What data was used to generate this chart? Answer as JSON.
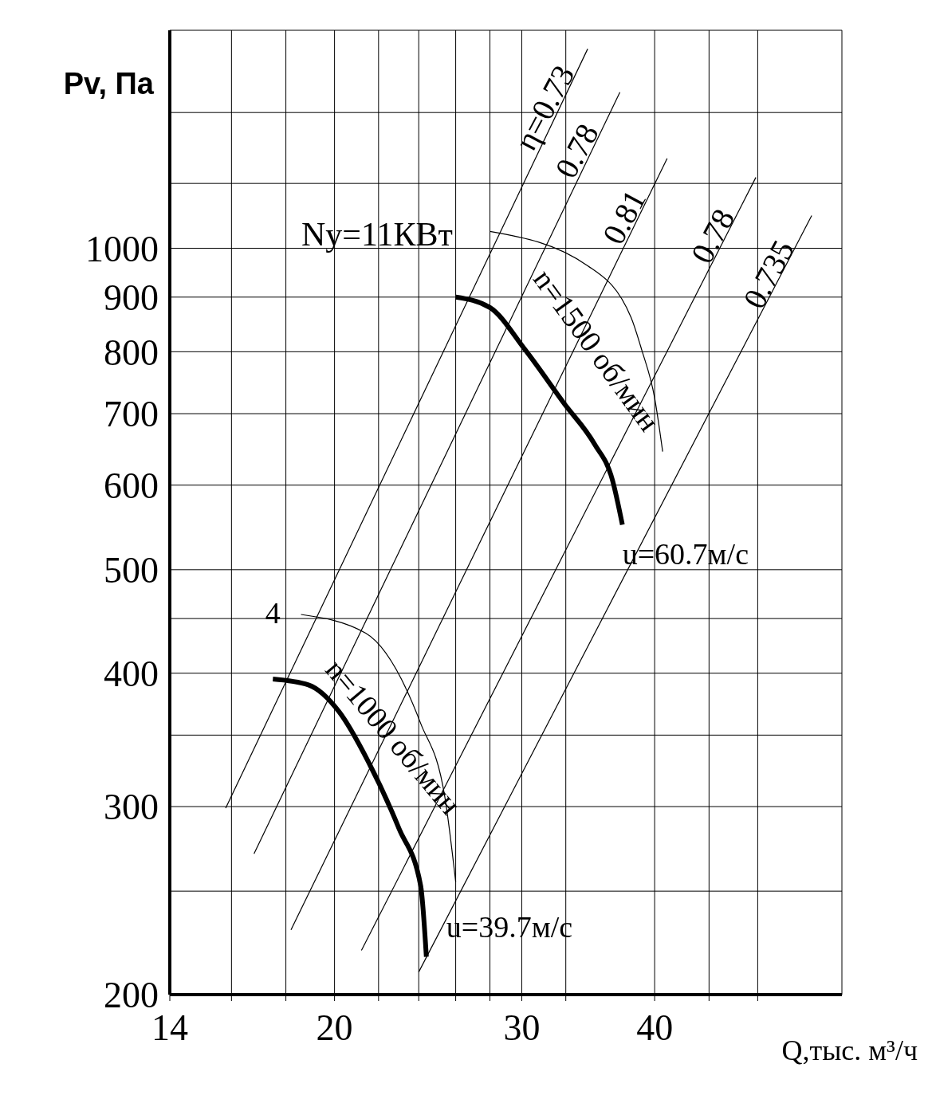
{
  "chart_data": {
    "type": "line",
    "xlabel": "Q,тыс. м³/ч",
    "ylabel": "Pv, Па",
    "log": "xy",
    "grid": true,
    "xlim": [
      14,
      60
    ],
    "ylim": [
      200,
      1600
    ],
    "xticks": [
      14,
      {
        "value": 16,
        "label": null
      },
      {
        "value": 18,
        "label": null
      },
      20,
      {
        "value": 22,
        "label": null
      },
      {
        "value": 24,
        "label": null
      },
      {
        "value": 26,
        "label": null
      },
      {
        "value": 28,
        "label": null
      },
      30,
      {
        "value": 33,
        "label": null
      },
      40,
      {
        "value": 45,
        "label": null
      },
      {
        "value": 50,
        "label": null
      }
    ],
    "yticks": [
      200,
      {
        "value": 250,
        "label": null
      },
      300,
      {
        "value": 350,
        "label": null
      },
      400,
      {
        "value": 450,
        "label": null
      },
      500,
      600,
      700,
      800,
      900,
      1000,
      {
        "value": 1150,
        "label": null
      },
      {
        "value": 1340,
        "label": null
      }
    ],
    "series": [
      {
        "color": "#000000",
        "x": [
          17.5,
          18.9,
          20.2,
          21.5,
          23.0,
          24.1,
          24.4
        ],
        "values": [
          395,
          390,
          368,
          331,
          286,
          253,
          217
        ]
      },
      {
        "color": "#000000",
        "x": [
          26.0,
          28.0,
          30.2,
          32.9,
          35.1,
          36.5,
          37.3
        ],
        "values": [
          900,
          880,
          804,
          715,
          656,
          607,
          551
        ]
      },
      {
        "color": "#000000",
        "x": [
          28.0,
          34.6,
          38.0,
          38.9,
          40.0,
          40.7
        ],
        "values": [
          1037,
          963,
          862,
          803,
          724,
          645
        ]
      },
      {
        "color": "#000000",
        "x": [
          18.6,
          21.4,
          24.1,
          25.4,
          26.0
        ],
        "values": [
          454,
          436,
          359,
          306,
          255
        ]
      },
      {
        "name": "η=0.73",
        "color": "#000000",
        "x": [
          15.8,
          34.6
        ],
        "values": [
          299,
          1537
        ]
      },
      {
        "name": "0.78",
        "color": "#000000",
        "x": [
          16.8,
          37.1
        ],
        "values": [
          271,
          1400
        ]
      },
      {
        "name": "0.81",
        "color": "#000000",
        "x": [
          18.2,
          41.1
        ],
        "values": [
          230,
          1214
        ]
      },
      {
        "name": "0.78",
        "color": "#000000",
        "x": [
          21.2,
          49.8
        ],
        "values": [
          220,
          1165
        ]
      },
      {
        "name": "0.735",
        "color": "#000000",
        "x": [
          24.0,
          56.2
        ],
        "values": [
          210,
          1073
        ]
      }
    ],
    "annotations": [
      "Ny=11КВт",
      {
        "text": "4",
        "x": 17.5,
        "y": 395
      },
      {
        "text": "n=1000 об/мин",
        "x": 21.5,
        "y": 331
      },
      {
        "text": "n=1500 об/мин",
        "x": 32.9,
        "y": 715
      },
      {
        "text": "u=39.7м/с",
        "x": 24.4,
        "y": 217
      },
      {
        "text": "u=60.7м/с",
        "x": 37.3,
        "y": 551
      }
    ]
  }
}
